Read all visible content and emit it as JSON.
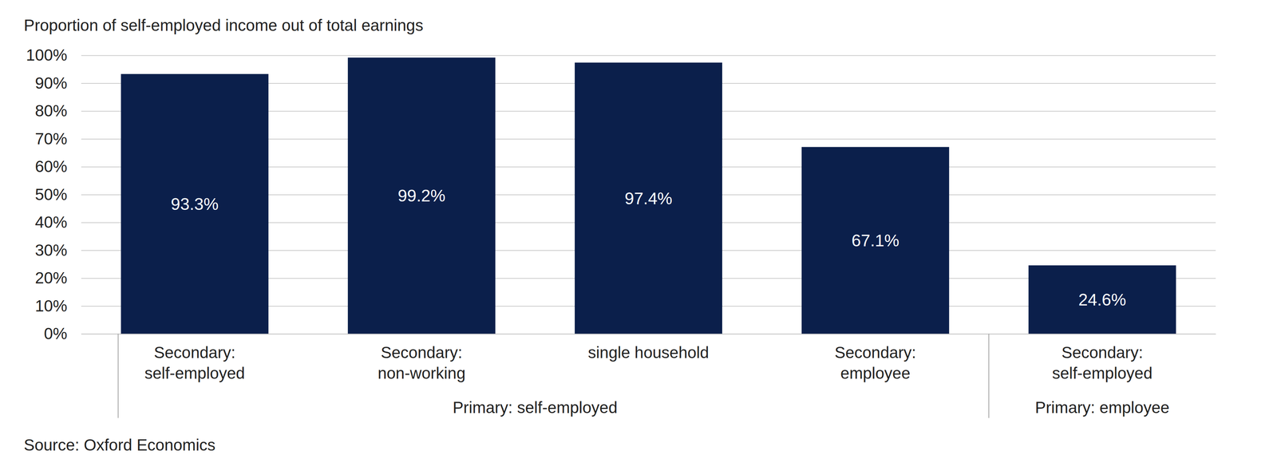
{
  "chart_data": {
    "type": "bar",
    "title": "Proportion of self-employed income out of total earnings",
    "categories": [
      "Secondary: self-employed",
      "Secondary: non-working",
      "single household",
      "Secondary: employee",
      "Secondary: self-employed"
    ],
    "x_groups": [
      "Primary: self-employed",
      "Primary: self-employed",
      "Primary: self-employed",
      "Primary: self-employed",
      "Primary: employee"
    ],
    "values": [
      93.3,
      99.2,
      97.4,
      67.1,
      24.6
    ],
    "value_labels": [
      "93.3%",
      "99.2%",
      "97.4%",
      "67.1%",
      "24.6%"
    ],
    "color": "#0b1f4b",
    "ylim": [
      0,
      100
    ],
    "yticks": [
      {
        "value": 0,
        "label": "0%"
      },
      {
        "value": 10,
        "label": "10%"
      },
      {
        "value": 20,
        "label": "20%"
      },
      {
        "value": 30,
        "label": "30%"
      },
      {
        "value": 40,
        "label": "40%"
      },
      {
        "value": 50,
        "label": "50%"
      },
      {
        "value": 60,
        "label": "60%"
      },
      {
        "value": 70,
        "label": "70%"
      },
      {
        "value": 80,
        "label": "80%"
      },
      {
        "value": 90,
        "label": "90%"
      },
      {
        "value": 100,
        "label": "100%"
      }
    ],
    "grid": true,
    "data_labels": true,
    "source": "Source: Oxford Economics"
  }
}
